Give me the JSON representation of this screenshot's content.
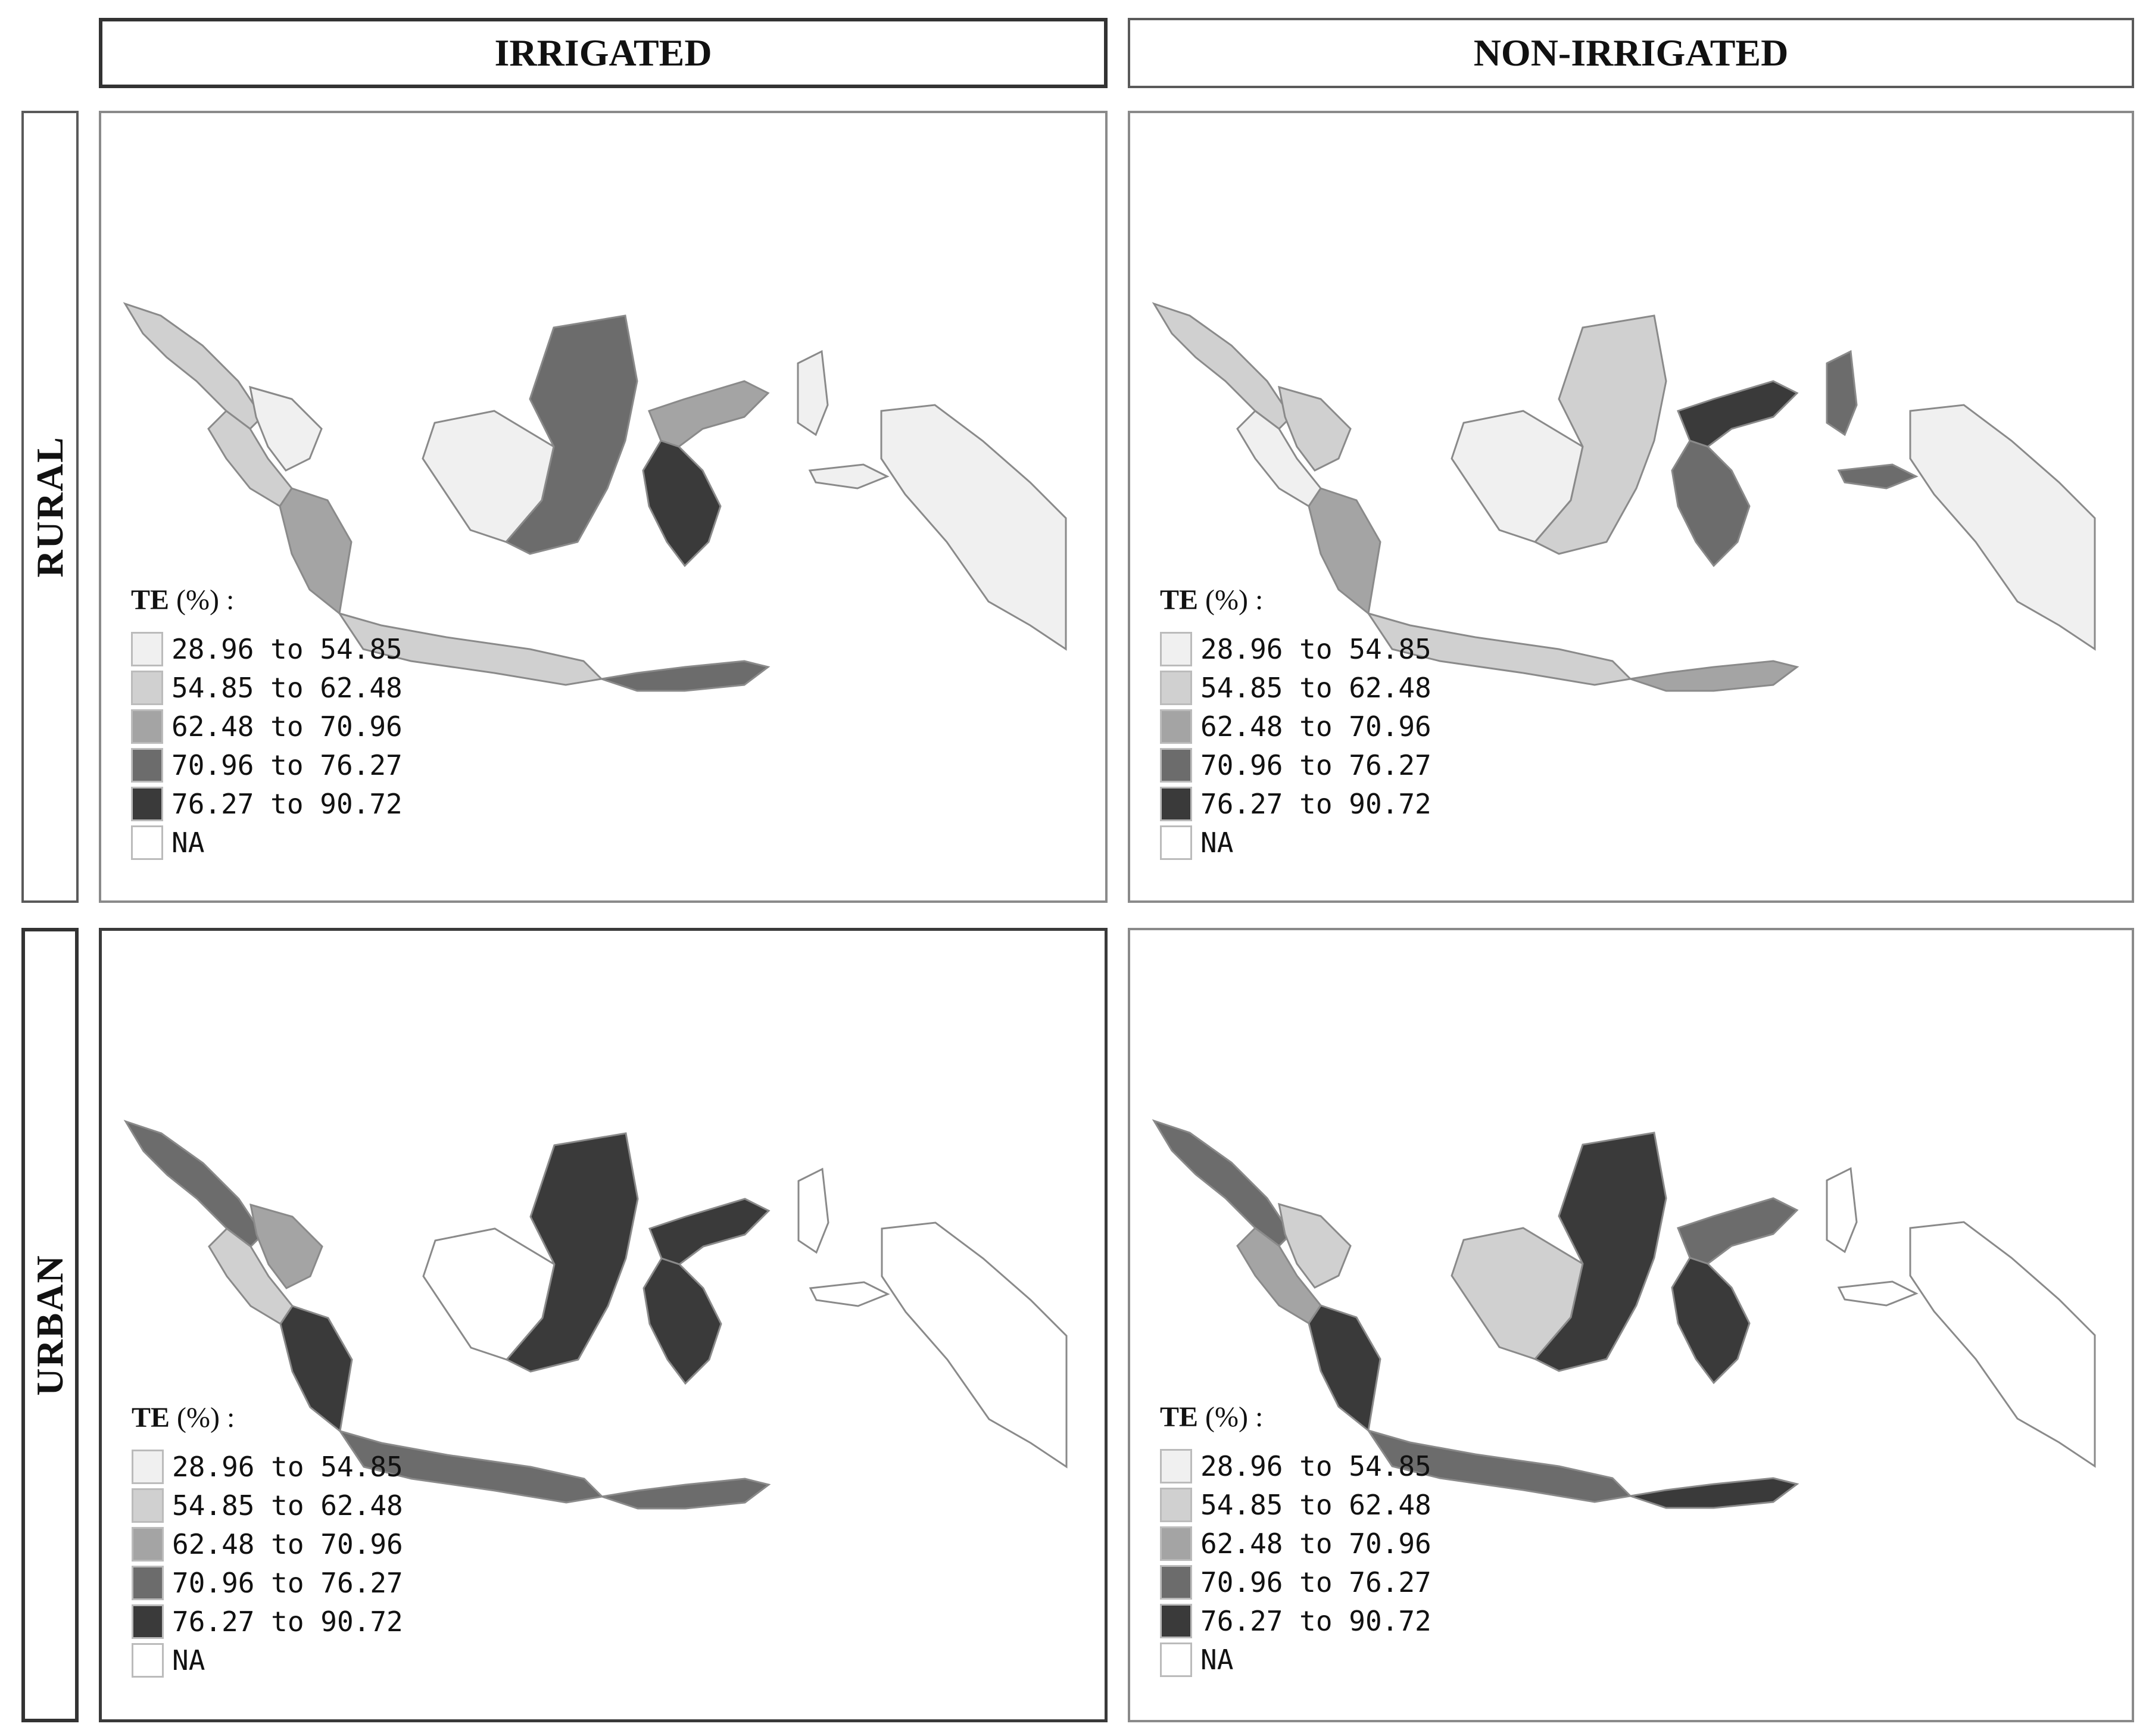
{
  "columns": [
    {
      "id": "irrigated",
      "label": "IRRIGATED"
    },
    {
      "id": "non_irrigated",
      "label": "NON-IRRIGATED"
    }
  ],
  "rows": [
    {
      "id": "rural",
      "label": "RURAL"
    },
    {
      "id": "urban",
      "label": "URBAN"
    }
  ],
  "legend": {
    "title_bold": "TE",
    "title_rest": " (%) :",
    "classes": [
      {
        "label": "28.96 to 54.85",
        "color": "#f0f0f0"
      },
      {
        "label": "54.85 to 62.48",
        "color": "#d0d0d0"
      },
      {
        "label": "62.48 to 70.96",
        "color": "#a4a4a4"
      },
      {
        "label": "70.96 to 76.27",
        "color": "#6c6c6c"
      },
      {
        "label": "76.27 to 90.72",
        "color": "#3a3a3a"
      },
      {
        "label": "NA",
        "color": "#ffffff"
      }
    ]
  },
  "panels": [
    {
      "row": "rural",
      "col": "irrigated",
      "regions": {
        "sumatra_north": 1,
        "sumatra_mid": 1,
        "sumatra_riau": 0,
        "sumatra_south": 2,
        "java": 1,
        "kalimantan_west": 0,
        "kalimantan_east": 3,
        "sulawesi_north": 2,
        "sulawesi_south": 4,
        "nusa": 3,
        "maluku": 0,
        "papua": 0
      }
    },
    {
      "row": "rural",
      "col": "non_irrigated",
      "regions": {
        "sumatra_north": 1,
        "sumatra_mid": 0,
        "sumatra_riau": 1,
        "sumatra_south": 2,
        "java": 1,
        "kalimantan_west": 0,
        "kalimantan_east": 1,
        "sulawesi_north": 4,
        "sulawesi_south": 3,
        "nusa": 2,
        "maluku": 3,
        "papua": 0
      }
    },
    {
      "row": "urban",
      "col": "irrigated",
      "regions": {
        "sumatra_north": 3,
        "sumatra_mid": 1,
        "sumatra_riau": 2,
        "sumatra_south": 4,
        "java": 3,
        "kalimantan_west": 5,
        "kalimantan_east": 4,
        "sulawesi_north": 4,
        "sulawesi_south": 4,
        "nusa": 3,
        "maluku": 5,
        "papua": 5
      }
    },
    {
      "row": "urban",
      "col": "non_irrigated",
      "regions": {
        "sumatra_north": 3,
        "sumatra_mid": 2,
        "sumatra_riau": 1,
        "sumatra_south": 4,
        "java": 3,
        "kalimantan_west": 1,
        "kalimantan_east": 4,
        "sulawesi_north": 3,
        "sulawesi_south": 4,
        "nusa": 4,
        "maluku": 5,
        "papua": 5
      }
    }
  ]
}
